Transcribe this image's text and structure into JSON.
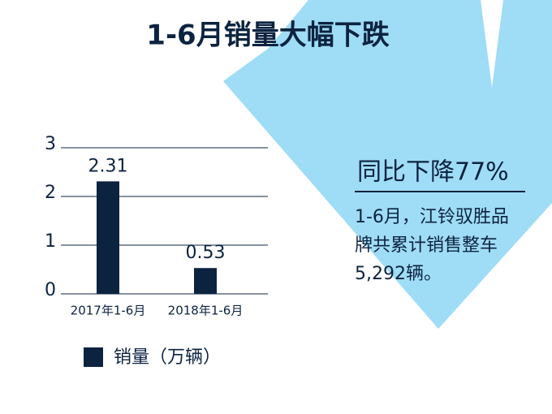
{
  "chart_data": {
    "type": "bar",
    "title": "1-6月销量大幅下跌",
    "categories": [
      "2017年1-6月",
      "2018年1-6月"
    ],
    "series": [
      {
        "name": "销量（万辆）",
        "color": "#0c2340",
        "values": [
          2.31,
          0.53
        ]
      }
    ],
    "ylim": [
      0,
      3
    ],
    "yticks": [
      0,
      1,
      2,
      3
    ],
    "grid": true,
    "annotations": {
      "headline": "同比下降77%",
      "body": [
        "1-6月，江铃驭胜品",
        "牌共累计销售整车",
        "5,292辆。"
      ]
    }
  }
}
